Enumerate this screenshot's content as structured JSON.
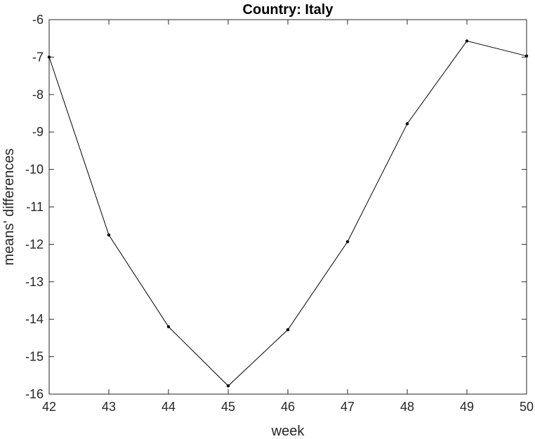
{
  "chart_data": {
    "type": "line",
    "title": "Country: Italy",
    "xlabel": "week",
    "ylabel": "means' differences",
    "x": [
      42,
      43,
      44,
      45,
      46,
      47,
      48,
      49,
      50
    ],
    "series": [
      {
        "values": [
          -7.0,
          -11.75,
          -14.2,
          -15.78,
          -14.28,
          -11.93,
          -8.78,
          -6.57,
          -6.97
        ]
      }
    ],
    "xlim": [
      42,
      50
    ],
    "ylim": [
      -16,
      -6
    ],
    "xticks": [
      42,
      43,
      44,
      45,
      46,
      47,
      48,
      49,
      50
    ],
    "yticks": [
      -16,
      -15,
      -14,
      -13,
      -12,
      -11,
      -10,
      -9,
      -8,
      -7,
      -6
    ],
    "grid": false,
    "line_color": "#000000",
    "marker": "dot"
  }
}
